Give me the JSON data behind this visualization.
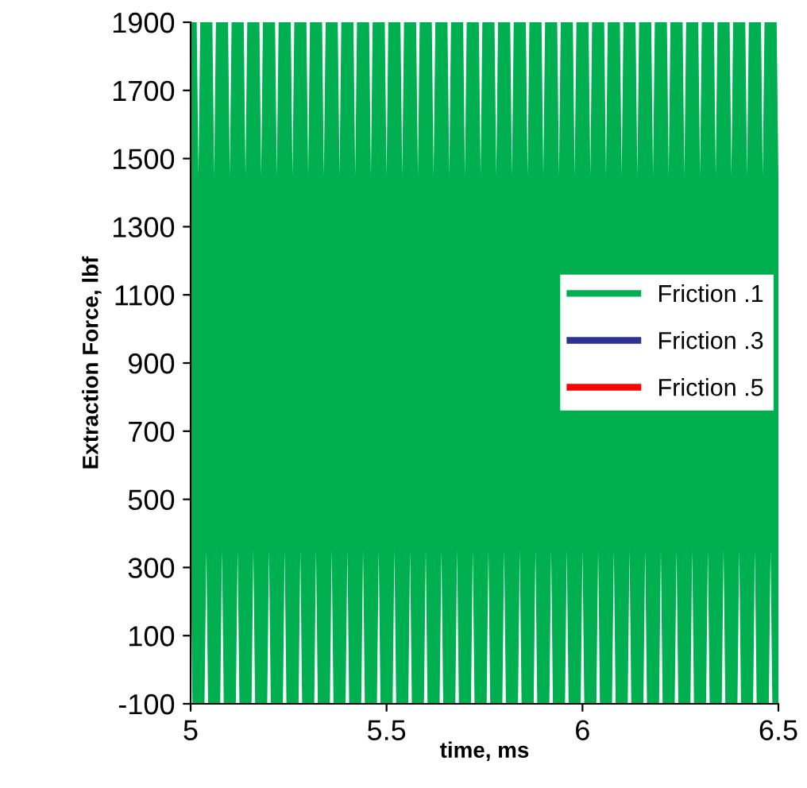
{
  "chart_data": {
    "type": "line",
    "xlabel": "time, ms",
    "ylabel": "Extraction Force, lbf",
    "x": [
      5,
      5.02,
      5.04,
      5.06,
      5.08,
      5.1,
      5.12,
      5.14,
      5.16,
      5.18,
      5.2,
      5.22,
      5.24,
      5.26,
      5.28,
      5.3,
      5.32,
      5.34,
      5.36,
      5.38,
      5.4,
      5.42,
      5.44,
      5.46,
      5.48,
      5.5,
      5.52,
      5.54,
      5.56,
      5.58,
      5.6,
      5.62,
      5.64,
      5.66,
      5.68,
      5.7,
      5.72,
      5.74,
      5.76,
      5.78,
      5.8,
      5.82,
      5.84,
      5.86,
      5.88,
      5.9,
      5.92,
      5.94,
      5.96,
      5.98,
      6,
      6.02,
      6.04,
      6.06,
      6.08,
      6.1,
      6.12,
      6.14,
      6.16,
      6.18,
      6.2,
      6.22,
      6.24,
      6.26,
      6.28,
      6.3,
      6.32,
      6.34,
      6.36,
      6.38,
      6.4,
      6.42,
      6.44,
      6.46,
      6.48,
      6.5
    ],
    "series": [
      {
        "name": "Friction .1",
        "color": "#00b050",
        "values": [
          1900,
          -100,
          1900,
          -100,
          1900,
          -100,
          1900,
          -100,
          1900,
          -100,
          1900,
          -100,
          1900,
          -100,
          1900,
          -100,
          1900,
          -100,
          1900,
          -100,
          1900,
          -100,
          1900,
          -100,
          1900,
          -100,
          1900,
          -100,
          1900,
          -100,
          1900,
          -100,
          1900,
          -100,
          1900,
          -100,
          1900,
          -100,
          1900,
          -100,
          1900,
          -100,
          1900,
          -100,
          1900,
          -100,
          1900,
          -100,
          1900,
          -100,
          1900,
          -100,
          1900,
          -100,
          1900,
          -100,
          1900,
          -100,
          1900,
          -100,
          1900,
          -100,
          1900,
          -100,
          1900,
          -100,
          1900,
          -100,
          1900,
          -100,
          1900,
          -100,
          1900,
          -100,
          1900,
          -100
        ]
      },
      {
        "name": "Friction .3",
        "color": "#2e3192",
        "values": [
          null,
          null,
          null,
          null,
          null,
          null,
          null,
          null,
          null,
          null,
          null,
          null,
          null,
          null,
          null,
          null,
          null,
          null,
          null,
          null,
          null,
          null,
          null,
          null,
          null,
          null,
          null,
          null,
          null,
          null,
          null,
          null,
          null,
          null,
          null,
          null,
          null,
          null,
          null,
          null,
          null,
          null,
          null,
          null,
          null,
          null,
          null,
          null,
          null,
          null,
          null,
          null,
          null,
          null,
          null,
          null,
          null,
          null,
          null,
          null,
          null,
          null,
          null,
          null,
          null,
          null,
          null,
          null,
          null,
          null,
          null,
          null,
          null,
          null,
          null,
          null
        ]
      },
      {
        "name": "Friction .5",
        "color": "#ff0000",
        "values": [
          null,
          null,
          null,
          null,
          null,
          null,
          null,
          null,
          null,
          null,
          null,
          null,
          null,
          null,
          null,
          null,
          null,
          null,
          null,
          null,
          null,
          null,
          null,
          null,
          null,
          null,
          null,
          null,
          null,
          null,
          null,
          null,
          null,
          null,
          null,
          null,
          null,
          null,
          null,
          null,
          null,
          null,
          null,
          null,
          null,
          null,
          null,
          null,
          null,
          null,
          null,
          null,
          null,
          null,
          null,
          null,
          null,
          null,
          null,
          null,
          null,
          null,
          null,
          null,
          null,
          null,
          null,
          null,
          null,
          null,
          null,
          null,
          null,
          null,
          null,
          null
        ]
      }
    ],
    "xlim": [
      5,
      6.5
    ],
    "xticks": [
      5,
      5.5,
      6,
      6.5
    ],
    "ylim": [
      -100,
      1900
    ],
    "yticks": [
      -100,
      100,
      300,
      500,
      700,
      900,
      1100,
      1300,
      1500,
      1700,
      1900
    ],
    "legend": "right",
    "grid": false,
    "marker": "none",
    "line_style": "solid"
  }
}
